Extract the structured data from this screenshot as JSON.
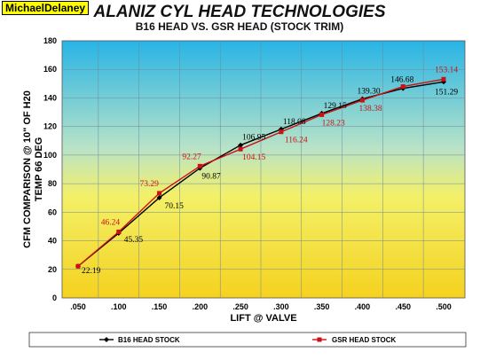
{
  "watermark": "MichaelDelaney",
  "chart_data": {
    "type": "line",
    "title": "ALANIZ CYL HEAD TECHNOLOGIES",
    "subtitle": "B16 HEAD VS. GSR HEAD (STOCK TRIM)",
    "xlabel": "LIFT @ VALVE",
    "ylabel_line1": "CFM COMPARISON @ 10\" OF H20",
    "ylabel_line2": "TEMP 66 DEG",
    "categories": [
      ".050",
      ".100",
      ".150",
      ".200",
      ".250",
      ".300",
      ".350",
      ".400",
      ".450",
      ".500"
    ],
    "ylim": [
      0,
      180
    ],
    "yticks": [
      "0",
      "20",
      "40",
      "60",
      "80",
      "100",
      "120",
      "140",
      "160",
      "180"
    ],
    "grid": true,
    "legend_position": "bottom",
    "series": [
      {
        "name": "B16 HEAD STOCK",
        "color": "#000000",
        "marker": "diamond",
        "values": [
          22.19,
          45.35,
          70.15,
          90.87,
          106.95,
          118.08,
          129.15,
          139.3,
          146.68,
          151.29
        ],
        "labels": [
          "22.19",
          "45.35",
          "70.15",
          "90.87",
          "106.95",
          "118.08",
          "129.15",
          "139.30",
          "146.68",
          "151.29"
        ]
      },
      {
        "name": "GSR HEAD STOCK",
        "color": "#cc1111",
        "marker": "square",
        "values": [
          22.19,
          46.24,
          73.29,
          92.27,
          104.15,
          116.24,
          128.23,
          138.38,
          148.0,
          153.14
        ],
        "labels": [
          "",
          "46.24",
          "73.29",
          "92.27",
          "104.15",
          "116.24",
          "128.23",
          "138.38",
          "",
          "153.14"
        ]
      }
    ]
  }
}
